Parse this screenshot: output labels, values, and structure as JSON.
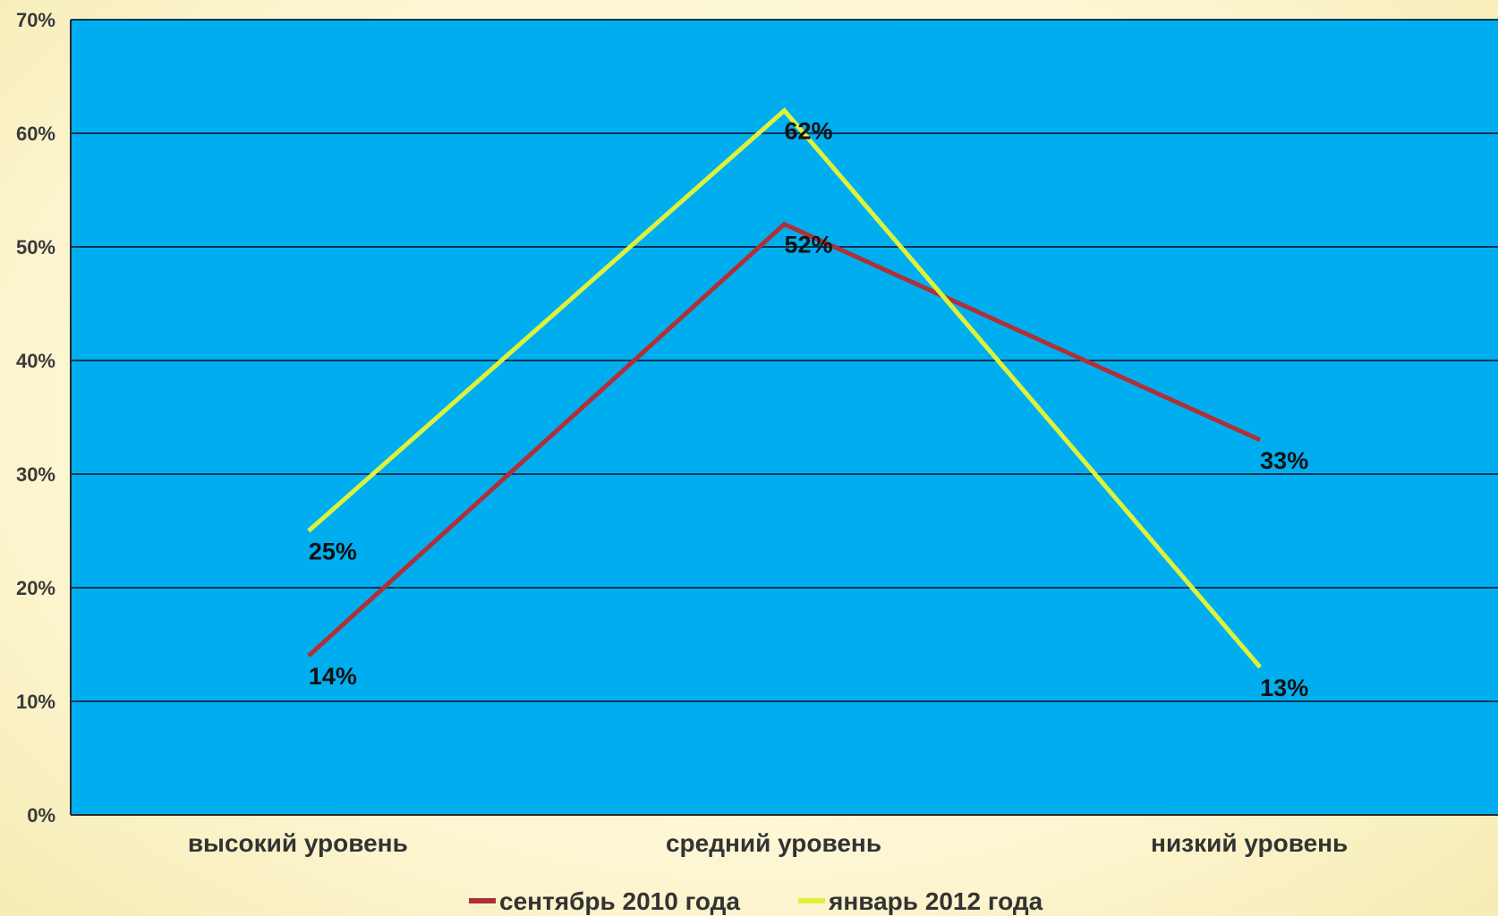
{
  "chart_data": {
    "type": "line",
    "categories": [
      "высокий уровень",
      "средний уровень",
      "низкий уровень"
    ],
    "series": [
      {
        "name": "сентябрь 2010 года",
        "values": [
          14,
          52,
          33
        ],
        "labels": [
          "14%",
          "52%",
          "33%"
        ],
        "color": "#b03037"
      },
      {
        "name": "январь 2012 года",
        "values": [
          25,
          62,
          13
        ],
        "labels": [
          "25%",
          "62%",
          "13%"
        ],
        "color": "#dff23a"
      }
    ],
    "y_ticks": [
      "0%",
      "10%",
      "20%",
      "30%",
      "40%",
      "50%",
      "60%",
      "70%"
    ],
    "ylim": [
      0,
      70
    ],
    "grid": true,
    "legend": "bottom",
    "plot_background": "#00aeef"
  }
}
